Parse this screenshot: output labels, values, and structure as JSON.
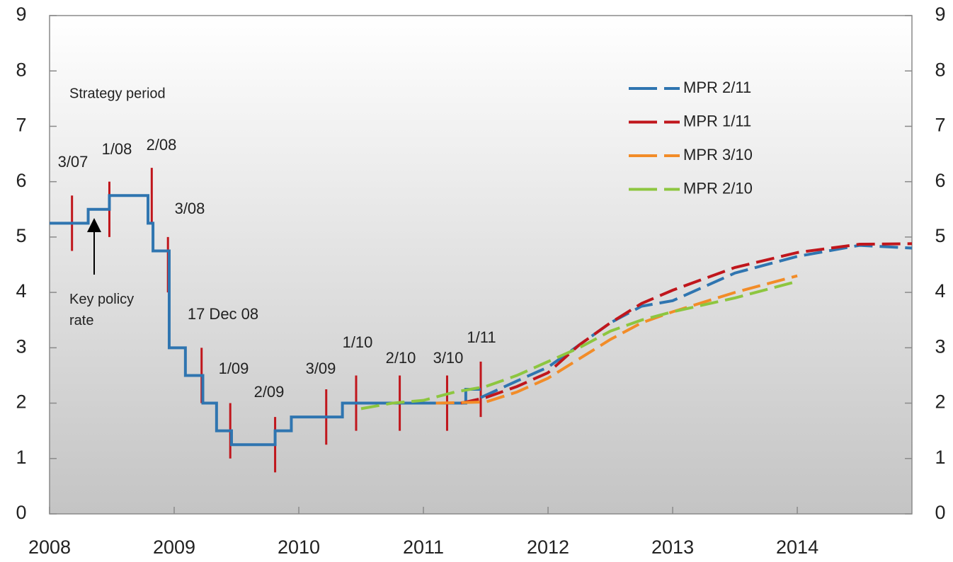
{
  "chart_data": {
    "type": "line",
    "xlim": [
      2008,
      2014.92
    ],
    "xticks": [
      2008,
      2009,
      2010,
      2011,
      2012,
      2013,
      2014
    ],
    "ylim": [
      0,
      9
    ],
    "yticks": [
      0,
      1,
      2,
      3,
      4,
      5,
      6,
      7,
      8,
      9
    ],
    "annotations": [
      "Strategy period",
      "Key policy rate"
    ],
    "series": [
      {
        "color": "#2f75b0",
        "dashed": false,
        "x": [
          2008.0,
          2008.31,
          2008.31,
          2008.48,
          2008.48,
          2008.79,
          2008.79,
          2008.83,
          2008.83,
          2008.96,
          2008.96,
          2009.09,
          2009.09,
          2009.23,
          2009.23,
          2009.34,
          2009.34,
          2009.46,
          2009.46,
          2009.81,
          2009.81,
          2009.94,
          2009.94,
          2010.35,
          2010.35,
          2011.34,
          2011.34,
          2011.46
        ],
        "values": [
          5.25,
          5.25,
          5.5,
          5.5,
          5.75,
          5.75,
          5.25,
          5.25,
          4.75,
          4.75,
          3,
          3,
          2.5,
          2.5,
          2,
          2,
          1.5,
          1.5,
          1.25,
          1.25,
          1.5,
          1.5,
          1.75,
          1.75,
          2,
          2,
          2.25,
          2.25
        ]
      },
      {
        "name": "MPR 2/11",
        "color": "#2f75b0",
        "dashed": true,
        "x": [
          2011.46,
          2011.75,
          2012.0,
          2012.25,
          2012.5,
          2012.75,
          2013.0,
          2013.5,
          2014.0,
          2014.5,
          2014.92
        ],
        "values": [
          2.1,
          2.4,
          2.65,
          3.05,
          3.45,
          3.75,
          3.85,
          4.35,
          4.65,
          4.85,
          4.8
        ]
      },
      {
        "name": "MPR 1/11",
        "color": "#c0161c",
        "dashed": true,
        "x": [
          2011.3,
          2011.5,
          2011.75,
          2012.0,
          2012.25,
          2012.5,
          2012.75,
          2013.0,
          2013.5,
          2014.0,
          2014.5,
          2014.92
        ],
        "values": [
          2.0,
          2.1,
          2.3,
          2.55,
          3.05,
          3.45,
          3.8,
          4.04,
          4.45,
          4.72,
          4.87,
          4.88
        ]
      },
      {
        "name": "MPR 3/10",
        "color": "#f28c28",
        "dashed": true,
        "x": [
          2011.1,
          2011.5,
          2011.75,
          2012.0,
          2012.25,
          2012.5,
          2012.75,
          2013.0,
          2013.5,
          2014.0
        ],
        "values": [
          2.0,
          2.02,
          2.2,
          2.45,
          2.8,
          3.15,
          3.45,
          3.65,
          4.0,
          4.3
        ]
      },
      {
        "name": "MPR 2/10",
        "color": "#8dc63f",
        "dashed": true,
        "x": [
          2010.5,
          2010.75,
          2011.0,
          2011.25,
          2011.5,
          2011.75,
          2012.0,
          2012.25,
          2012.5,
          2012.75,
          2013.0,
          2013.5,
          2014.0
        ],
        "values": [
          1.9,
          2.0,
          2.05,
          2.2,
          2.3,
          2.5,
          2.75,
          3.0,
          3.3,
          3.5,
          3.65,
          3.9,
          4.2
        ]
      }
    ],
    "report_markers": [
      {
        "label": "3/07",
        "x": 2008.18,
        "range": [
          4.75,
          5.75
        ]
      },
      {
        "label": "1/08",
        "x": 2008.48,
        "range": [
          5,
          6
        ]
      },
      {
        "label": "2/08",
        "x": 2008.82,
        "range": [
          5.25,
          6.25
        ]
      },
      {
        "label": "3/08",
        "x": 2008.95,
        "range": [
          4,
          5
        ]
      },
      {
        "label": "17 Dec 08",
        "x": 2009.22,
        "range": [
          2,
          3
        ]
      },
      {
        "label": "1/09",
        "x": 2009.45,
        "range": [
          1,
          2
        ]
      },
      {
        "label": "2/09",
        "x": 2009.81,
        "range": [
          0.75,
          1.75
        ]
      },
      {
        "label": "3/09",
        "x": 2010.22,
        "range": [
          1.25,
          2.25
        ]
      },
      {
        "label": "1/10",
        "x": 2010.46,
        "range": [
          1.5,
          2.5
        ]
      },
      {
        "label": "2/10",
        "x": 2010.81,
        "range": [
          1.5,
          2.5
        ]
      },
      {
        "label": "3/10",
        "x": 2011.19,
        "range": [
          1.5,
          2.5
        ]
      },
      {
        "label": "1/11",
        "x": 2011.46,
        "range": [
          1.75,
          2.75
        ]
      }
    ],
    "marker_color": "#c0161c"
  }
}
